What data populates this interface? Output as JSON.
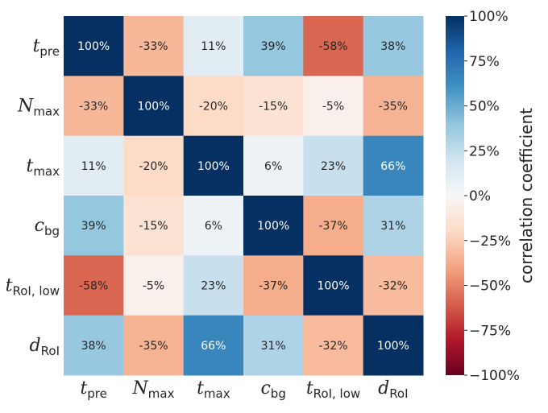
{
  "chart_data": {
    "type": "heatmap",
    "rows": [
      {
        "main": "t",
        "sub": "pre"
      },
      {
        "main": "N",
        "sub": "max"
      },
      {
        "main": "t",
        "sub": "max"
      },
      {
        "main": "c",
        "sub": "bg"
      },
      {
        "main": "t",
        "sub": "RoI, low"
      },
      {
        "main": "d",
        "sub": "RoI"
      }
    ],
    "columns": [
      {
        "main": "t",
        "sub": "pre"
      },
      {
        "main": "N",
        "sub": "max"
      },
      {
        "main": "t",
        "sub": "max"
      },
      {
        "main": "c",
        "sub": "bg"
      },
      {
        "main": "t",
        "sub": "RoI, low"
      },
      {
        "main": "d",
        "sub": "RoI"
      }
    ],
    "values": [
      [
        100,
        -33,
        11,
        39,
        -58,
        38
      ],
      [
        -33,
        100,
        -20,
        -15,
        -5,
        -35
      ],
      [
        11,
        -20,
        100,
        6,
        23,
        66
      ],
      [
        39,
        -15,
        6,
        100,
        -37,
        31
      ],
      [
        -58,
        -5,
        23,
        -37,
        100,
        -32
      ],
      [
        38,
        -35,
        66,
        31,
        -32,
        100
      ]
    ],
    "cell_labels": [
      [
        "100%",
        "-33%",
        "11%",
        "39%",
        "-58%",
        "38%"
      ],
      [
        "-33%",
        "100%",
        "-20%",
        "-15%",
        "-5%",
        "-35%"
      ],
      [
        "11%",
        "-20%",
        "100%",
        "6%",
        "23%",
        "66%"
      ],
      [
        "39%",
        "-15%",
        "6%",
        "100%",
        "-37%",
        "31%"
      ],
      [
        "-58%",
        "-5%",
        "23%",
        "-37%",
        "100%",
        "-32%"
      ],
      [
        "38%",
        "-35%",
        "66%",
        "31%",
        "-32%",
        "100%"
      ]
    ],
    "value_range": [
      -100,
      100
    ],
    "colormap": "RdBu",
    "colorbar": {
      "label": "correlation coefficient",
      "ticks": [
        100,
        75,
        50,
        25,
        0,
        -25,
        -50,
        -75,
        -100
      ],
      "tick_labels": [
        "100%",
        "75%",
        "50%",
        "25%",
        "0%",
        "−25%",
        "−50%",
        "−75%",
        "−100%"
      ]
    }
  }
}
